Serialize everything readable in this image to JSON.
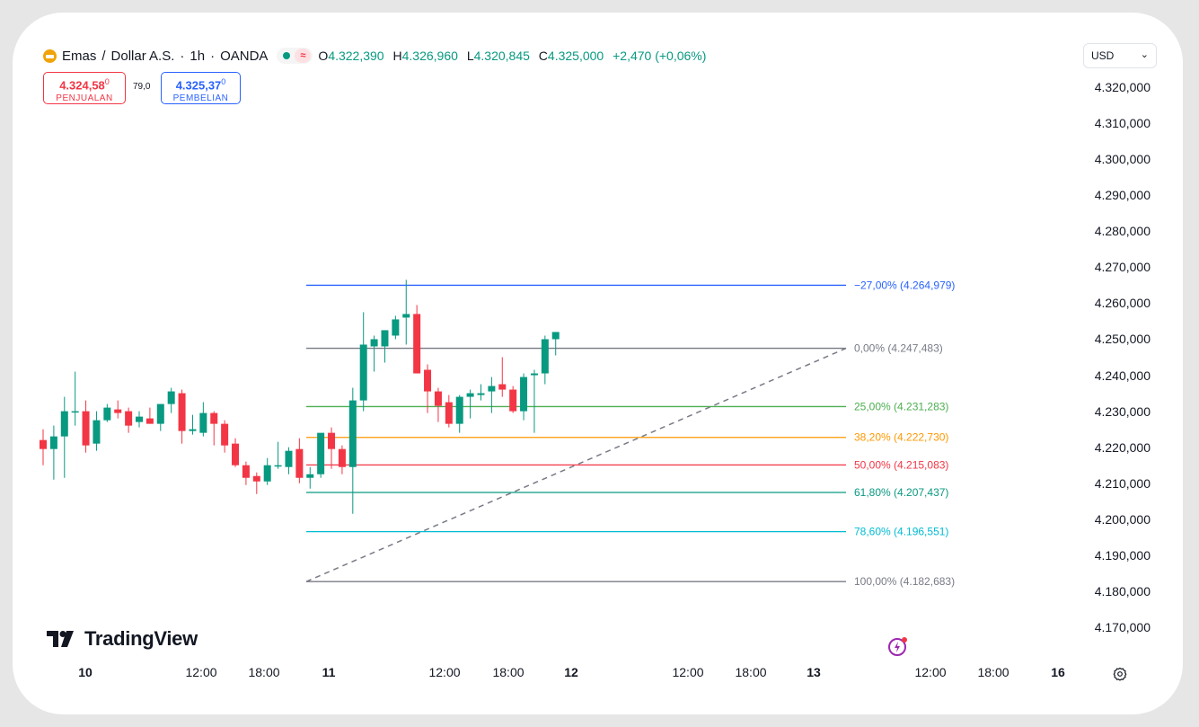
{
  "header": {
    "symbol": "Emas",
    "separator1": "/",
    "symbol_quote": "Dollar A.S.",
    "dot1": "·",
    "interval": "1h",
    "dot2": "·",
    "source": "OANDA",
    "ohlc": {
      "o_label": "O",
      "o_value": "4.322,390",
      "h_label": "H",
      "h_value": "4.326,960",
      "l_label": "L",
      "l_value": "4.320,845",
      "c_label": "C",
      "c_value": "4.325,000",
      "change": "+2,470 (+0,06%)"
    }
  },
  "trade": {
    "sell_price": "4.324,58",
    "sell_sup": "0",
    "sell_label": "PENJUALAN",
    "spread": "79,0",
    "buy_price": "4.325,37",
    "buy_sup": "0",
    "buy_label": "PEMBELIAN"
  },
  "currency": {
    "value": "USD",
    "chevron": "⌄"
  },
  "y_axis": [
    "4.320,000",
    "4.310,000",
    "4.300,000",
    "4.290,000",
    "4.280,000",
    "4.270,000",
    "4.260,000",
    "4.250,000",
    "4.240,000",
    "4.230,000",
    "4.220,000",
    "4.210,000",
    "4.200,000",
    "4.190,000",
    "4.180,000",
    "4.170,000"
  ],
  "x_axis": [
    {
      "label": "10",
      "bold": true
    },
    {
      "label": "12:00",
      "bold": false
    },
    {
      "label": "18:00",
      "bold": false
    },
    {
      "label": "11",
      "bold": true
    },
    {
      "label": "12:00",
      "bold": false
    },
    {
      "label": "18:00",
      "bold": false
    },
    {
      "label": "12",
      "bold": true
    },
    {
      "label": "12:00",
      "bold": false
    },
    {
      "label": "18:00",
      "bold": false
    },
    {
      "label": "13",
      "bold": true
    },
    {
      "label": "12:00",
      "bold": false
    },
    {
      "label": "18:00",
      "bold": false
    },
    {
      "label": "16",
      "bold": true
    }
  ],
  "fib_levels": [
    {
      "text": "−27,00% (4.264,979)",
      "price": 4264.979,
      "color": "#2962ff"
    },
    {
      "text": "0,00% (4.247,483)",
      "price": 4247.483,
      "color": "#787b86"
    },
    {
      "text": "25,00% (4.231,283)",
      "price": 4231.283,
      "color": "#4caf50"
    },
    {
      "text": "38,20% (4.222,730)",
      "price": 4222.73,
      "color": "#ff9800"
    },
    {
      "text": "50,00% (4.215,083)",
      "price": 4215.083,
      "color": "#f23645"
    },
    {
      "text": "61,80% (4.207,437)",
      "price": 4207.437,
      "color": "#089981"
    },
    {
      "text": "78,60% (4.196,551)",
      "price": 4196.551,
      "color": "#00bcd4"
    },
    {
      "text": "100,00% (4.182,683)",
      "price": 4182.683,
      "color": "#787b86"
    }
  ],
  "brand": {
    "name": "TradingView"
  },
  "colors": {
    "up": "#089981",
    "down": "#f23645"
  },
  "chart_data": {
    "type": "candlestick",
    "candles": [
      {
        "o": 4222.0,
        "h": 4225.0,
        "l": 4215.0,
        "c": 4219.5
      },
      {
        "o": 4219.5,
        "h": 4226.0,
        "l": 4211.0,
        "c": 4223.0
      },
      {
        "o": 4223.0,
        "h": 4234.0,
        "l": 4211.5,
        "c": 4230.0
      },
      {
        "o": 4230.0,
        "h": 4241.0,
        "l": 4226.0,
        "c": 4230.0
      },
      {
        "o": 4230.0,
        "h": 4233.0,
        "l": 4218.5,
        "c": 4220.5
      },
      {
        "o": 4221.0,
        "h": 4230.0,
        "l": 4219.0,
        "c": 4227.5
      },
      {
        "o": 4227.5,
        "h": 4232.0,
        "l": 4227.0,
        "c": 4231.0
      },
      {
        "o": 4230.5,
        "h": 4233.0,
        "l": 4228.0,
        "c": 4229.5
      },
      {
        "o": 4230.0,
        "h": 4231.0,
        "l": 4224.0,
        "c": 4226.0
      },
      {
        "o": 4227.0,
        "h": 4230.0,
        "l": 4225.5,
        "c": 4228.5
      },
      {
        "o": 4228.0,
        "h": 4231.0,
        "l": 4226.5,
        "c": 4226.5
      },
      {
        "o": 4226.5,
        "h": 4232.0,
        "l": 4224.5,
        "c": 4232.0
      },
      {
        "o": 4232.0,
        "h": 4236.5,
        "l": 4229.5,
        "c": 4235.5
      },
      {
        "o": 4235.0,
        "h": 4236.0,
        "l": 4221.0,
        "c": 4224.5
      },
      {
        "o": 4224.5,
        "h": 4229.0,
        "l": 4223.5,
        "c": 4225.0
      },
      {
        "o": 4224.0,
        "h": 4232.5,
        "l": 4223.0,
        "c": 4229.5
      },
      {
        "o": 4229.5,
        "h": 4230.0,
        "l": 4220.5,
        "c": 4226.5
      },
      {
        "o": 4226.5,
        "h": 4227.5,
        "l": 4218.5,
        "c": 4220.5
      },
      {
        "o": 4221.0,
        "h": 4222.5,
        "l": 4214.5,
        "c": 4215.0
      },
      {
        "o": 4215.0,
        "h": 4216.0,
        "l": 4209.5,
        "c": 4211.5
      },
      {
        "o": 4212.0,
        "h": 4213.0,
        "l": 4207.0,
        "c": 4210.5
      },
      {
        "o": 4210.5,
        "h": 4217.0,
        "l": 4209.5,
        "c": 4215.0
      },
      {
        "o": 4215.0,
        "h": 4221.5,
        "l": 4214.0,
        "c": 4215.0
      },
      {
        "o": 4214.5,
        "h": 4220.0,
        "l": 4212.5,
        "c": 4219.0
      },
      {
        "o": 4219.5,
        "h": 4222.5,
        "l": 4210.0,
        "c": 4211.5
      },
      {
        "o": 4211.5,
        "h": 4214.5,
        "l": 4208.5,
        "c": 4212.5
      },
      {
        "o": 4212.5,
        "h": 4223.5,
        "l": 4211.5,
        "c": 4224.0
      },
      {
        "o": 4224.0,
        "h": 4225.5,
        "l": 4214.0,
        "c": 4219.5
      },
      {
        "o": 4219.5,
        "h": 4220.5,
        "l": 4212.5,
        "c": 4214.5
      },
      {
        "o": 4214.5,
        "h": 4236.5,
        "l": 4201.5,
        "c": 4233.0
      },
      {
        "o": 4233.0,
        "h": 4257.5,
        "l": 4230.0,
        "c": 4248.5
      },
      {
        "o": 4248.0,
        "h": 4251.0,
        "l": 4241.0,
        "c": 4250.0
      },
      {
        "o": 4248.0,
        "h": 4252.5,
        "l": 4243.5,
        "c": 4252.5
      },
      {
        "o": 4251.0,
        "h": 4256.5,
        "l": 4250.0,
        "c": 4255.5
      },
      {
        "o": 4256.0,
        "h": 4266.5,
        "l": 4248.5,
        "c": 4257.0
      },
      {
        "o": 4257.0,
        "h": 4259.5,
        "l": 4240.5,
        "c": 4240.5
      },
      {
        "o": 4241.5,
        "h": 4243.0,
        "l": 4229.5,
        "c": 4235.5
      },
      {
        "o": 4235.5,
        "h": 4236.5,
        "l": 4227.0,
        "c": 4231.5
      },
      {
        "o": 4232.5,
        "h": 4234.5,
        "l": 4225.5,
        "c": 4226.5
      },
      {
        "o": 4226.5,
        "h": 4234.5,
        "l": 4224.0,
        "c": 4234.0
      },
      {
        "o": 4234.0,
        "h": 4236.0,
        "l": 4228.0,
        "c": 4235.0
      },
      {
        "o": 4234.5,
        "h": 4237.5,
        "l": 4233.0,
        "c": 4235.0
      },
      {
        "o": 4235.5,
        "h": 4239.5,
        "l": 4229.5,
        "c": 4237.0
      },
      {
        "o": 4237.5,
        "h": 4245.0,
        "l": 4234.0,
        "c": 4236.0
      },
      {
        "o": 4236.0,
        "h": 4237.0,
        "l": 4229.5,
        "c": 4230.0
      },
      {
        "o": 4230.0,
        "h": 4240.5,
        "l": 4227.5,
        "c": 4239.5
      },
      {
        "o": 4240.0,
        "h": 4241.5,
        "l": 4224.0,
        "c": 4240.5
      },
      {
        "o": 4240.5,
        "h": 4251.0,
        "l": 4237.5,
        "c": 4250.0
      },
      {
        "o": 4250.0,
        "h": 4252.0,
        "l": 4245.5,
        "c": 4252.0
      }
    ],
    "trend_line": {
      "from": 4182.683,
      "to": 4247.483
    }
  }
}
